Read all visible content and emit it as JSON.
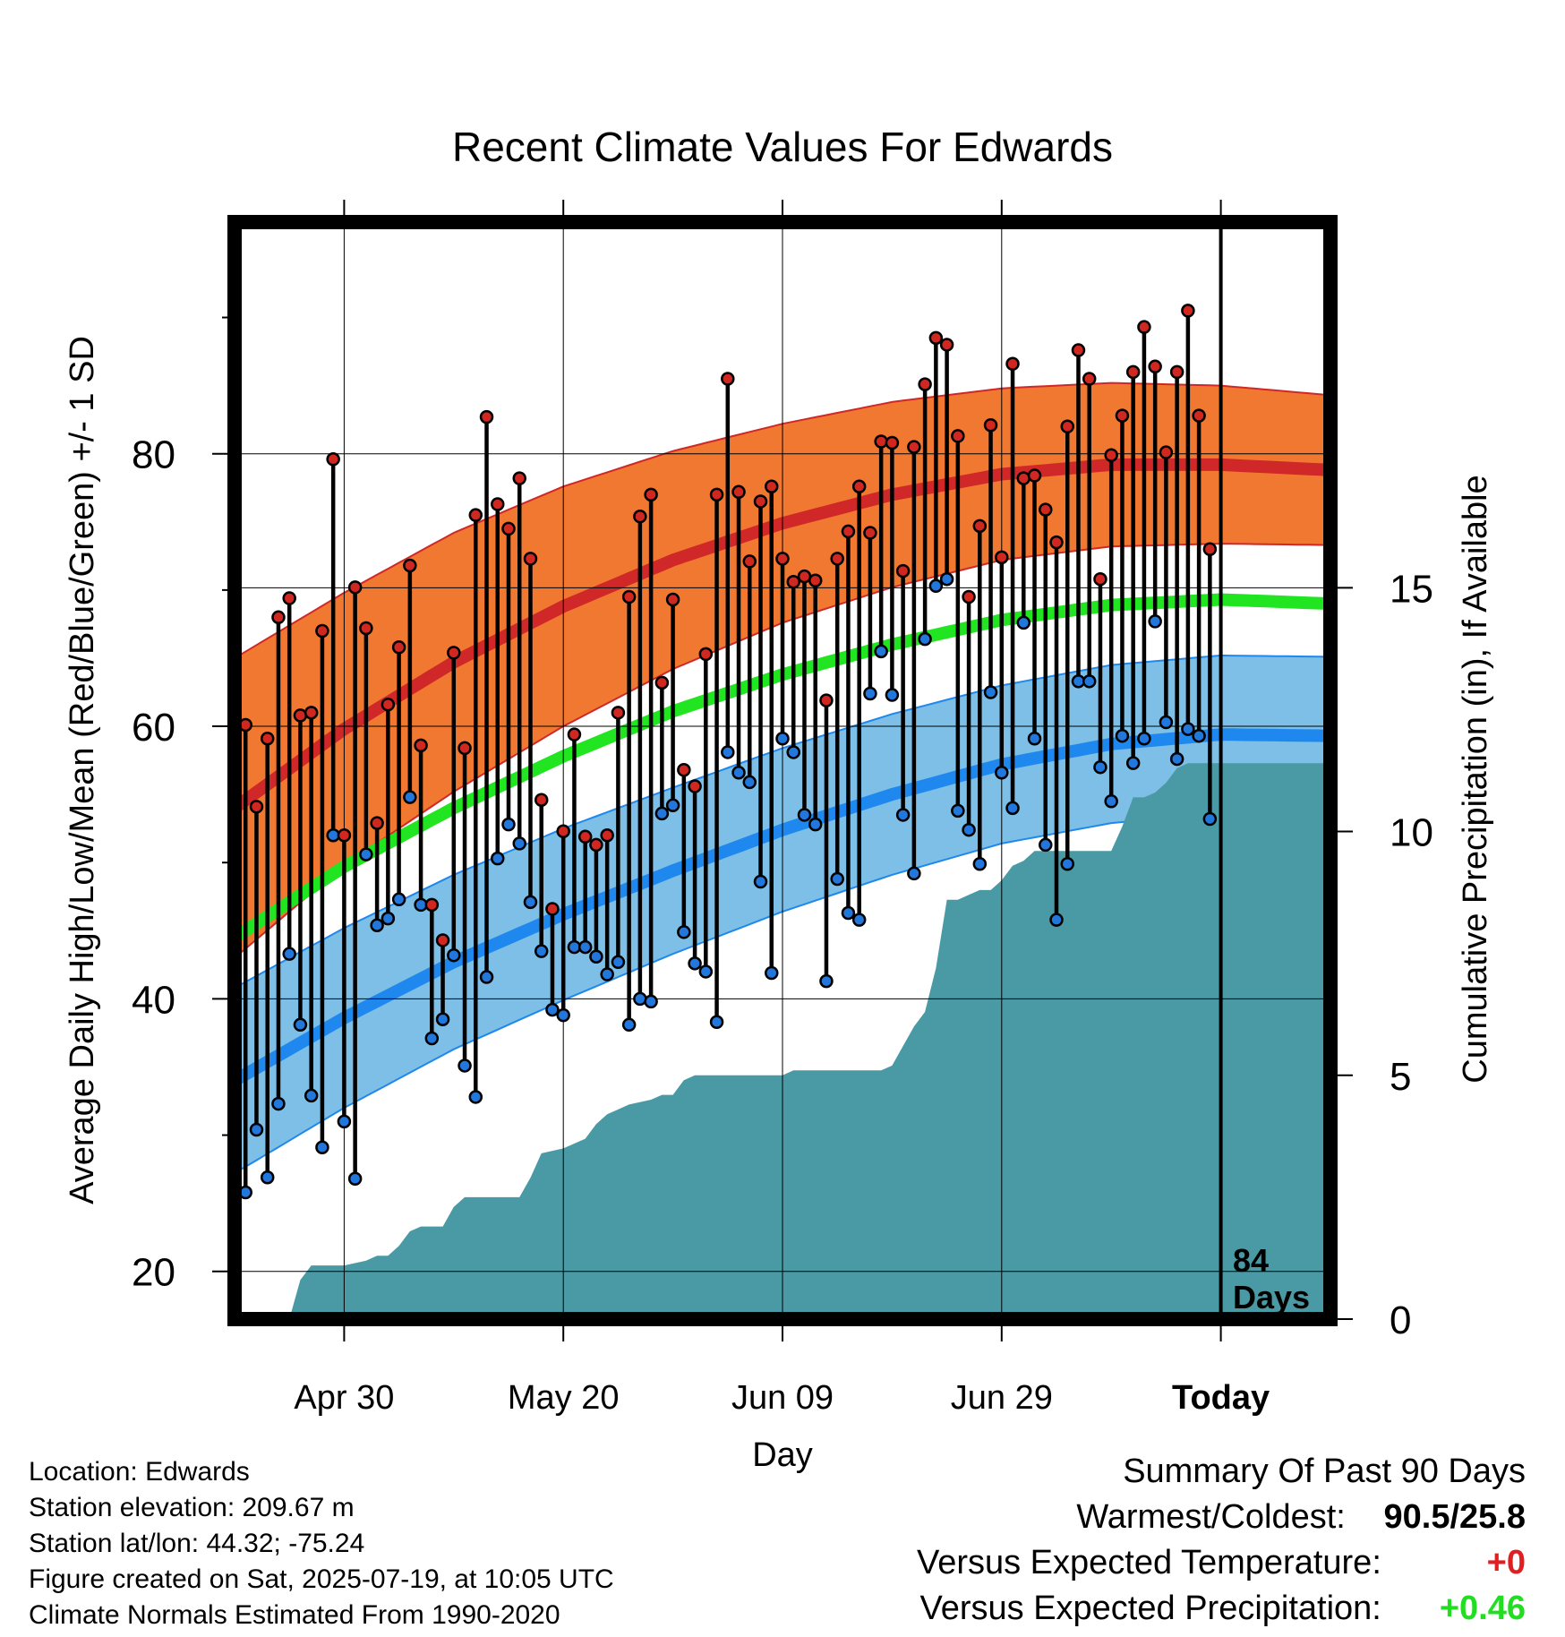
{
  "title": "Recent Climate Values For Edwards",
  "colors": {
    "high_band": "#f07830",
    "high_line": "#d02828",
    "mean_line": "#22e522",
    "low_band": "#7dbfe6",
    "low_line": "#1e88ee",
    "precip": "#4a9aa5",
    "high_marker": "#d02820",
    "low_marker": "#2277dd",
    "departure_temp": "#e02020",
    "departure_precip": "#22dd22"
  },
  "chart_data": {
    "type": "line",
    "title": "Recent Climate Values For Edwards",
    "xlabel": "Day",
    "ylabel": "Average Daily High/Low/Mean (Red/Blue/Green) +/- 1 SD",
    "y2label": "Cumulative Precipitation (in), If Available",
    "x_tick_labels": [
      "Apr 30",
      "May 20",
      "Jun 09",
      "Jun 29",
      "Today"
    ],
    "x_tick_days": [
      10,
      30,
      50,
      70,
      90
    ],
    "x_range": [
      0,
      100
    ],
    "ylim": [
      16.5,
      97
    ],
    "y_ticks": [
      20,
      40,
      60,
      80
    ],
    "y2lim": [
      0,
      22.5
    ],
    "y2_ticks": [
      0,
      5,
      10,
      15
    ],
    "today_day": 90,
    "today_annotation": [
      "84",
      "Days"
    ],
    "grid": true,
    "normals": {
      "days": [
        0,
        10,
        20,
        30,
        40,
        50,
        60,
        70,
        80,
        90,
        100
      ],
      "high_mean": [
        54,
        59.8,
        64.7,
        68.8,
        72.2,
        74.9,
        77,
        78.5,
        79.2,
        79.2,
        78.8
      ],
      "high_sd": [
        11,
        10,
        9.5,
        8.8,
        8,
        7.3,
        6.8,
        6.3,
        6,
        5.8,
        5.5
      ],
      "low_mean": [
        34,
        38.6,
        42.7,
        46.2,
        49.4,
        52.4,
        55,
        57.2,
        58.7,
        59.4,
        59.3
      ],
      "low_sd": [
        6.8,
        6.6,
        6.4,
        6.3,
        6.1,
        6,
        5.9,
        5.8,
        5.8,
        5.8,
        5.8
      ],
      "mean": [
        44.5,
        49.7,
        54,
        57.8,
        61.1,
        63.8,
        66,
        67.8,
        68.9,
        69.3,
        69
      ]
    },
    "series": [
      {
        "name": "High",
        "x": [
          0,
          1,
          2,
          3,
          4,
          5,
          6,
          7,
          8,
          9,
          10,
          11,
          12,
          13,
          14,
          15,
          16,
          17,
          18,
          19,
          20,
          21,
          22,
          23,
          24,
          25,
          26,
          27,
          28,
          29,
          30,
          31,
          32,
          33,
          34,
          35,
          36,
          37,
          38,
          39,
          40,
          41,
          42,
          43,
          44,
          45,
          46,
          47,
          48,
          49,
          50,
          51,
          52,
          53,
          54,
          55,
          56,
          57,
          58,
          59,
          60,
          61,
          62,
          63,
          64,
          65,
          66,
          67,
          68,
          69,
          70,
          71,
          72,
          73,
          74,
          75,
          76,
          77,
          78,
          79,
          80,
          81,
          82,
          83,
          84,
          85,
          86,
          87,
          88,
          89
        ],
        "values": [
          50.4,
          60.1,
          54.1,
          59.1,
          68,
          69.4,
          60.8,
          61,
          67,
          79.6,
          52,
          70.2,
          67.2,
          52.9,
          61.6,
          65.8,
          71.8,
          58.6,
          46.9,
          44.3,
          65.4,
          58.4,
          75.5,
          82.7,
          76.3,
          74.5,
          78.2,
          72.3,
          54.6,
          46.6,
          52.3,
          59.4,
          51.9,
          51.3,
          52,
          61,
          69.5,
          75.4,
          77,
          63.2,
          69.3,
          56.8,
          55.6,
          65.3,
          77,
          85.5,
          77.2,
          72.1,
          76.5,
          77.6,
          72.3,
          70.6,
          71,
          70.7,
          61.9,
          72.3,
          74.3,
          77.6,
          74.2,
          80.9,
          80.8,
          71.4,
          80.5,
          85.1,
          88.5,
          88,
          81.3,
          69.5,
          74.7,
          82.1,
          72.4,
          86.6,
          78.2,
          78.4,
          75.9,
          73.5,
          82,
          87.6,
          85.5,
          70.8,
          79.9,
          82.8,
          86,
          89.3,
          86.4,
          80.1,
          86,
          90.5,
          82.8,
          73
        ]
      },
      {
        "name": "Low",
        "x": [
          0,
          1,
          2,
          3,
          4,
          5,
          6,
          7,
          8,
          9,
          10,
          11,
          12,
          13,
          14,
          15,
          16,
          17,
          18,
          19,
          20,
          21,
          22,
          23,
          24,
          25,
          26,
          27,
          28,
          29,
          30,
          31,
          32,
          33,
          34,
          35,
          36,
          37,
          38,
          39,
          40,
          41,
          42,
          43,
          44,
          45,
          46,
          47,
          48,
          49,
          50,
          51,
          52,
          53,
          54,
          55,
          56,
          57,
          58,
          59,
          60,
          61,
          62,
          63,
          64,
          65,
          66,
          67,
          68,
          69,
          70,
          71,
          72,
          73,
          74,
          75,
          76,
          77,
          78,
          79,
          80,
          81,
          82,
          83,
          84,
          85,
          86,
          87,
          88,
          89
        ],
        "values": [
          28.9,
          25.8,
          30.4,
          26.9,
          32.3,
          43.3,
          38.1,
          32.9,
          29.1,
          52,
          31,
          26.8,
          50.6,
          45.4,
          45.9,
          47.3,
          54.8,
          46.9,
          37.1,
          38.5,
          43.2,
          35.1,
          32.8,
          41.6,
          50.3,
          52.8,
          51.4,
          47.1,
          43.5,
          39.2,
          38.8,
          43.8,
          43.8,
          43.1,
          41.8,
          42.7,
          38.1,
          40,
          39.8,
          53.6,
          54.2,
          44.9,
          42.6,
          42,
          38.3,
          58.1,
          56.6,
          55.9,
          48.6,
          41.9,
          59.1,
          58.1,
          53.5,
          52.8,
          41.3,
          48.8,
          46.3,
          45.8,
          62.4,
          65.5,
          62.3,
          53.5,
          49.2,
          66.4,
          70.3,
          70.8,
          53.8,
          52.4,
          49.9,
          62.5,
          56.6,
          54,
          67.6,
          59.1,
          51.3,
          45.8,
          49.9,
          63.3,
          63.3,
          57,
          54.5,
          59.3,
          57.3,
          59.1,
          67.7,
          60.3,
          57.6,
          59.8,
          59.3,
          53.2
        ]
      }
    ],
    "cumulative_precip": {
      "x": [
        5,
        6,
        7,
        10,
        12,
        13,
        14,
        15,
        16,
        17,
        19,
        20,
        21,
        26,
        27,
        28,
        30,
        31,
        32,
        33,
        34,
        35,
        36,
        38,
        39,
        40,
        41,
        42,
        43,
        50,
        51,
        59,
        60,
        61,
        62,
        63,
        64,
        65,
        66,
        67,
        68,
        69,
        70,
        71,
        72,
        73,
        74,
        75,
        76,
        80,
        81,
        82,
        83,
        84,
        85,
        86,
        87,
        88,
        90,
        100
      ],
      "values": [
        0,
        0.8,
        1.1,
        1.1,
        1.2,
        1.3,
        1.3,
        1.5,
        1.8,
        1.9,
        1.9,
        2.3,
        2.5,
        2.5,
        2.9,
        3.4,
        3.5,
        3.6,
        3.7,
        4,
        4.2,
        4.3,
        4.4,
        4.5,
        4.6,
        4.6,
        4.9,
        5,
        5,
        5,
        5.1,
        5.1,
        5.2,
        5.6,
        6,
        6.3,
        7.2,
        8.6,
        8.6,
        8.7,
        8.8,
        8.8,
        9,
        9.3,
        9.4,
        9.6,
        9.6,
        9.6,
        9.6,
        9.6,
        10.1,
        10.7,
        10.7,
        10.8,
        11,
        11.3,
        11.4,
        11.4,
        11.4,
        11.4
      ]
    }
  },
  "info": {
    "location": "Location: Edwards",
    "elevation": "Station elevation: 209.67 m",
    "latlon": "Station lat/lon: 44.32; -75.24",
    "created": "Figure created on Sat, 2025-07-19, at 10:05 UTC",
    "normals": "Climate Normals Estimated From 1990-2020"
  },
  "summary": {
    "title": "Summary Of Past 90 Days",
    "warmest_coldest_label": "Warmest/Coldest:",
    "warmest_coldest_value": "90.5/25.8",
    "temp_label": "Versus Expected Temperature:",
    "temp_value": "+0",
    "precip_label": "Versus Expected Precipitation:",
    "precip_value": "+0.46"
  }
}
